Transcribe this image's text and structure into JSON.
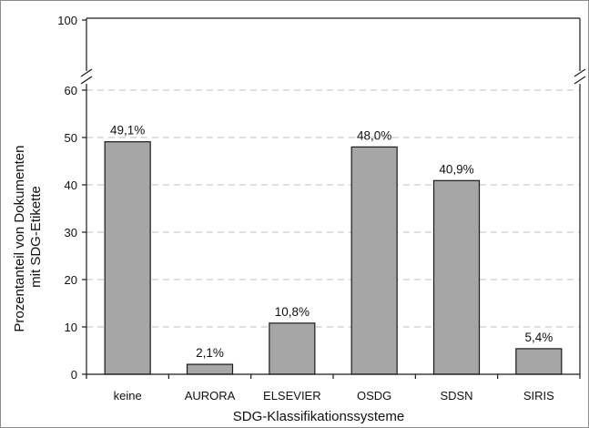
{
  "chart_data": {
    "type": "bar",
    "title": "",
    "xlabel": "SDG-Klassifikationssysteme",
    "ylabel_lines": [
      "Prozentanteil von Dokumenten",
      "mit SDG-Etikette"
    ],
    "categories": [
      "keine",
      "AURORA",
      "ELSEVIER",
      "OSDG",
      "SDSN",
      "SIRIS"
    ],
    "values": [
      49.1,
      2.1,
      10.8,
      48.0,
      40.9,
      5.4
    ],
    "data_labels": [
      "49,1%",
      "2,1%",
      "10,8%",
      "48,0%",
      "40,9%",
      "5,4%"
    ],
    "y_ticks": [
      0,
      10,
      20,
      30,
      40,
      50,
      60
    ],
    "y_break_top_tick": 100,
    "ylim": [
      0,
      100
    ],
    "axis_break": [
      60,
      100
    ],
    "grid": "dashed-horizontal",
    "legend": "none",
    "colors": {
      "bar": "#a6a6a6",
      "bar_stroke": "#1a1a1a",
      "grid": "#bfbfbf"
    }
  }
}
